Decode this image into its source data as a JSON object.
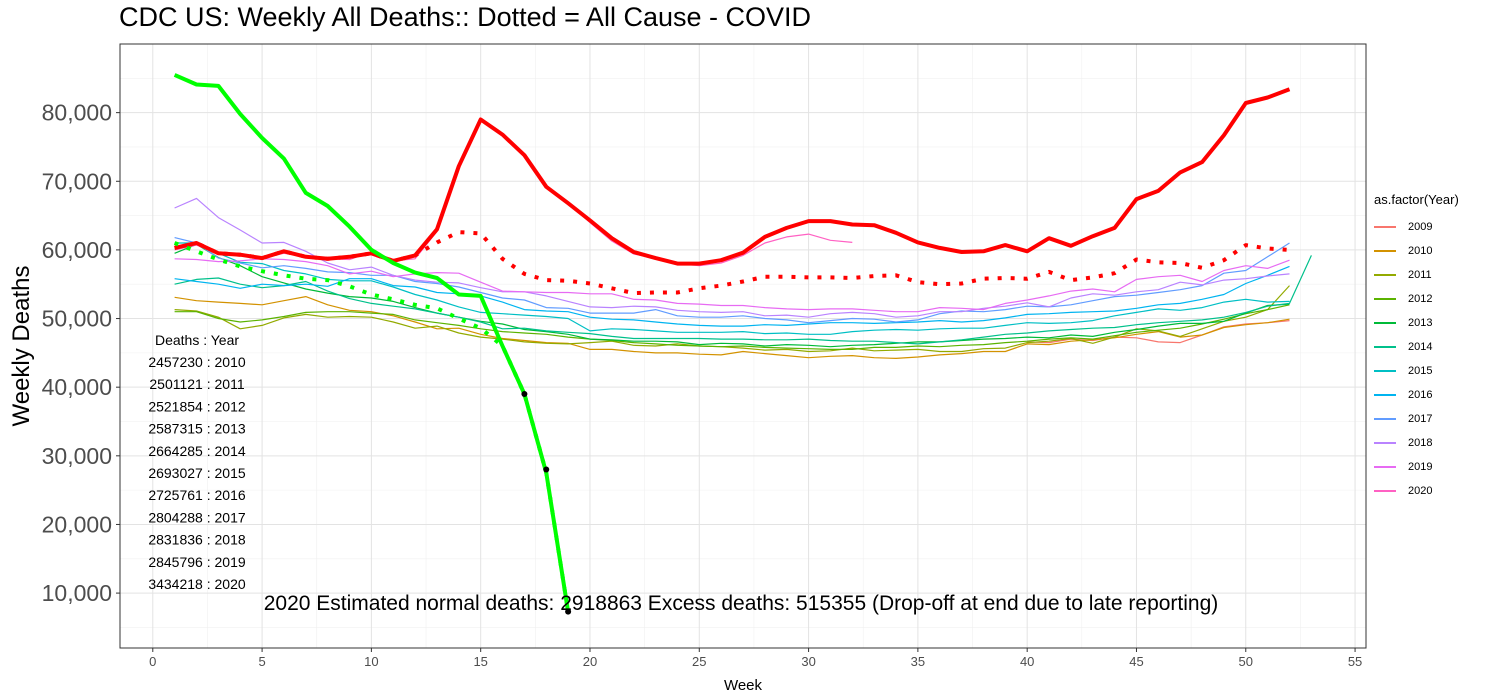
{
  "title": "CDC US: Weekly All Deaths:: Dotted = All Cause - COVID",
  "chart_data": {
    "type": "line",
    "xlabel": "Week",
    "ylabel": "Weekly Deaths",
    "xlim": [
      -1.5,
      55.5
    ],
    "ylim": [
      2000,
      90000
    ],
    "x_ticks": [
      0,
      5,
      10,
      15,
      20,
      25,
      30,
      35,
      40,
      45,
      50,
      55
    ],
    "y_ticks": [
      10000,
      20000,
      30000,
      40000,
      50000,
      60000,
      70000,
      80000
    ],
    "y_tick_labels": [
      "10,000",
      "20,000",
      "30,000",
      "40,000",
      "50,000",
      "60,000",
      "70,000",
      "80,000"
    ],
    "grid": true,
    "legend_title": "as.factor(Year)",
    "legend_position": "right",
    "series": [
      {
        "name": "2009",
        "color": "#F8766D",
        "x_start": 40,
        "values": [
          46600,
          46500,
          47000,
          46800,
          47300,
          47200,
          46600,
          46500,
          47600,
          48800,
          49200,
          49400,
          49700
        ]
      },
      {
        "name": "2010",
        "color": "#D39200",
        "x_start": 1,
        "values": [
          53100,
          52600,
          52400,
          52200,
          52000,
          52600,
          53200,
          52000,
          51200,
          51000,
          50400,
          49500,
          48500,
          48600,
          47700,
          47100,
          46800,
          46500,
          46400,
          45500,
          45500,
          45200,
          45000,
          45000,
          44800,
          44700,
          45200,
          44900,
          44600,
          44300,
          44500,
          44600,
          44300,
          44200,
          44400,
          44700,
          44900,
          45200,
          45200,
          46300,
          46200,
          46700,
          46900,
          47200,
          47700,
          48100,
          47300,
          47600,
          48700,
          49100,
          49400,
          49900
        ]
      },
      {
        "name": "2011",
        "color": "#93AA00",
        "x_start": 1,
        "values": [
          51300,
          51100,
          50200,
          48500,
          49000,
          50100,
          50600,
          50200,
          50300,
          50200,
          49500,
          48600,
          48900,
          47900,
          47300,
          47000,
          46600,
          46400,
          46300,
          46500,
          46700,
          46100,
          46000,
          46300,
          46000,
          45900,
          45700,
          45400,
          45500,
          45200,
          45300,
          45700,
          45300,
          45400,
          45500,
          45200,
          45200,
          45600,
          45700,
          46500,
          46700,
          47100,
          46400,
          47300,
          48500,
          48200,
          47400,
          48500,
          49600,
          50200,
          51300,
          54800
        ]
      },
      {
        "name": "2012",
        "color": "#5BB300",
        "x_start": 1,
        "values": [
          51000,
          51000,
          50000,
          49500,
          49800,
          50300,
          50900,
          51000,
          51000,
          50800,
          50600,
          49800,
          49400,
          49000,
          48500,
          48100,
          47900,
          47700,
          47300,
          47000,
          46800,
          46500,
          46300,
          46100,
          46000,
          45900,
          46000,
          45800,
          45700,
          45600,
          45500,
          45500,
          45800,
          45800,
          46000,
          45900,
          46100,
          46200,
          46500,
          46700,
          47000,
          47200,
          47000,
          47500,
          48000,
          48300,
          48600,
          49200,
          49900,
          50700,
          51300,
          52000
        ]
      },
      {
        "name": "2013",
        "color": "#00BA38",
        "x_start": 1,
        "values": [
          59500,
          60800,
          58900,
          57700,
          56100,
          55200,
          54300,
          53700,
          53200,
          53000,
          52500,
          51600,
          50800,
          50200,
          49600,
          49200,
          48400,
          48100,
          47700,
          47000,
          46900,
          46700,
          46700,
          46600,
          46200,
          46400,
          46300,
          46000,
          46200,
          46100,
          45900,
          46100,
          46200,
          46400,
          46600,
          46600,
          46800,
          47000,
          47100,
          47300,
          47200,
          47600,
          47400,
          48000,
          48400,
          48900,
          49300,
          49300,
          49600,
          50800,
          51900,
          52100
        ]
      },
      {
        "name": "2014",
        "color": "#00C08B",
        "x_start": 1,
        "values": [
          55000,
          55700,
          55900,
          55000,
          54500,
          54800,
          55400,
          54000,
          52900,
          52200,
          51800,
          51400,
          50800,
          50200,
          49500,
          48500,
          48600,
          48200,
          48000,
          47800,
          47400,
          47100,
          47100,
          47100,
          47100,
          47000,
          47000,
          46900,
          46900,
          47000,
          46800,
          46700,
          46700,
          46500,
          46300,
          46600,
          46900,
          47300,
          47700,
          47900,
          48200,
          48400,
          48600,
          48700,
          49100,
          49400,
          49600,
          49800,
          50200,
          50900,
          51800,
          52200,
          59200
        ]
      },
      {
        "name": "2015",
        "color": "#00BFC4",
        "x_start": 1,
        "values": [
          61000,
          61000,
          59500,
          58200,
          58000,
          57000,
          56500,
          55700,
          55500,
          55500,
          54600,
          53500,
          52700,
          51700,
          50900,
          50700,
          50500,
          50300,
          50000,
          48200,
          48500,
          48400,
          48200,
          48000,
          48000,
          48000,
          48100,
          47800,
          47900,
          47700,
          47700,
          48100,
          48300,
          48400,
          48300,
          48500,
          48600,
          48600,
          49000,
          49400,
          49300,
          49400,
          49700,
          50400,
          50900,
          51400,
          51200,
          51600,
          52400,
          52800,
          52400,
          52500
        ]
      },
      {
        "name": "2016",
        "color": "#00B4F0",
        "x_start": 1,
        "values": [
          55800,
          55400,
          55000,
          54400,
          55000,
          54800,
          55000,
          54700,
          55800,
          55800,
          54800,
          54600,
          53800,
          53600,
          53300,
          52400,
          51300,
          51100,
          51000,
          50200,
          49900,
          49800,
          49500,
          49200,
          49000,
          48900,
          48900,
          49100,
          49000,
          49200,
          49400,
          49400,
          49300,
          49400,
          49500,
          49700,
          49500,
          49700,
          50100,
          50600,
          50700,
          50900,
          51000,
          51100,
          51500,
          52000,
          52200,
          52800,
          53500,
          55100,
          56300,
          57600
        ]
      },
      {
        "name": "2017",
        "color": "#619CFF",
        "x_start": 1,
        "values": [
          61800,
          61000,
          58800,
          58100,
          57400,
          57700,
          57300,
          56800,
          56700,
          56300,
          56300,
          55400,
          55100,
          54600,
          53800,
          53000,
          52700,
          51600,
          51500,
          50800,
          50800,
          50800,
          51300,
          50400,
          50200,
          50200,
          50400,
          50000,
          49800,
          49400,
          49700,
          50000,
          49900,
          49500,
          49800,
          50700,
          51100,
          51000,
          51300,
          51800,
          51700,
          52000,
          52600,
          53200,
          53400,
          53800,
          54200,
          54800,
          56600,
          57000,
          59000,
          61000
        ]
      },
      {
        "name": "2018",
        "color": "#B983FF",
        "x_start": 1,
        "values": [
          66100,
          67500,
          64700,
          62900,
          61000,
          61100,
          59800,
          58100,
          57100,
          57500,
          56300,
          55600,
          55300,
          55200,
          54500,
          53900,
          53900,
          53300,
          52500,
          51700,
          51600,
          51800,
          51700,
          51200,
          51000,
          50900,
          51000,
          50400,
          50500,
          50200,
          50700,
          50900,
          50700,
          50200,
          50400,
          51000,
          51000,
          51500,
          51800,
          52300,
          51700,
          53000,
          53600,
          53400,
          53900,
          54200,
          55300,
          54900,
          55600,
          55800,
          56200,
          56500
        ]
      },
      {
        "name": "2019",
        "color": "#E76BF3",
        "x_start": 1,
        "values": [
          58700,
          58600,
          58300,
          58400,
          58700,
          58600,
          58300,
          57700,
          56500,
          56900,
          56100,
          56500,
          56700,
          56600,
          55300,
          54000,
          53900,
          53800,
          53800,
          53600,
          53600,
          52800,
          52700,
          52200,
          52100,
          51900,
          51900,
          51600,
          51400,
          51300,
          51400,
          51400,
          51200,
          51000,
          51000,
          51600,
          51500,
          51300,
          52200,
          52700,
          53300,
          54000,
          54300,
          53900,
          55700,
          56100,
          56300,
          55400,
          57000,
          57700,
          57300,
          58500
        ]
      },
      {
        "name": "2020",
        "color": "#FF61C3",
        "x_start": 1,
        "values": [
          60000,
          60700,
          59400,
          59300,
          58800,
          59500,
          59000,
          58700,
          58600,
          59700,
          58400,
          58700,
          62700,
          72200,
          79000,
          76800,
          73800,
          69000,
          66800,
          64000,
          61300,
          59400,
          58800,
          58000,
          57700,
          58100,
          59200,
          61000,
          61900,
          62300,
          61400,
          61100
        ]
      },
      {
        "name": "2020 all deaths (red)",
        "color": "#FF0000",
        "width": 4,
        "x_start": 1,
        "values": [
          60300,
          61000,
          59500,
          59300,
          58800,
          59800,
          59000,
          58700,
          59000,
          59500,
          58400,
          59200,
          63000,
          72200,
          79000,
          76800,
          73800,
          69200,
          66800,
          64300,
          61700,
          59700,
          58800,
          58000,
          58000,
          58500,
          59600,
          61900,
          63200,
          64200,
          64200,
          63700,
          63600,
          62500,
          61100,
          60300,
          59700,
          59800,
          60700,
          59800,
          61700,
          60600,
          62000,
          63200,
          67400,
          68600,
          71300,
          72800,
          76700,
          81400,
          82200,
          83400
        ]
      },
      {
        "name": "2020 all cause - COVID (red dotted)",
        "color": "#FF0000",
        "width": 4,
        "dotted": true,
        "x_start": 1,
        "values": [
          60300,
          61000,
          59500,
          59300,
          58800,
          59800,
          59000,
          58700,
          59000,
          59500,
          58400,
          59200,
          61100,
          62600,
          62400,
          58700,
          56500,
          55600,
          55500,
          55100,
          54400,
          53700,
          53800,
          53800,
          54400,
          54800,
          55400,
          56100,
          56100,
          56000,
          56000,
          55900,
          56200,
          56300,
          55300,
          55000,
          55100,
          55800,
          55900,
          55800,
          56800,
          55600,
          56000,
          56600,
          58600,
          58200,
          58100,
          57400,
          58500,
          60700,
          60200,
          60000
        ]
      },
      {
        "name": "2021 all deaths (green)",
        "color": "#00FF00",
        "width": 4,
        "x_start": 1,
        "values": [
          85500,
          84100,
          83900,
          79800,
          76300,
          73300,
          68300,
          66400,
          63400,
          60000,
          58100,
          56700,
          55900,
          53500,
          53300,
          46000,
          39000,
          27500,
          7300
        ]
      },
      {
        "name": "2021 all cause - COVID (green dotted)",
        "color": "#00FF00",
        "width": 4,
        "dotted": true,
        "x_start": 1,
        "values": [
          61000,
          59800,
          58600,
          57600,
          56900,
          56300,
          55800,
          55600,
          54700,
          53500,
          52800,
          52000,
          51500,
          50000,
          48600,
          46000,
          39000,
          27500,
          7300
        ]
      }
    ],
    "legend_entries": [
      "2009",
      "2010",
      "2011",
      "2012",
      "2013",
      "2014",
      "2015",
      "2016",
      "2017",
      "2018",
      "2019",
      "2020"
    ],
    "legend_colors": [
      "#F8766D",
      "#D39200",
      "#93AA00",
      "#5BB300",
      "#00BA38",
      "#00C08B",
      "#00BFC4",
      "#00B4F0",
      "#619CFF",
      "#B983FF",
      "#E76BF3",
      "#FF61C3"
    ],
    "black_points": [
      {
        "x": 17,
        "y": 39000
      },
      {
        "x": 18,
        "y": 28000
      },
      {
        "x": 19,
        "y": 7300
      }
    ],
    "annotations": {
      "deaths_header": "Deaths : Year",
      "deaths_lines": [
        "2457230 : 2010",
        "2501121 : 2011",
        "2521854 : 2012",
        "2587315 : 2013",
        "2664285 : 2014",
        "2693027 : 2015",
        "2725761 : 2016",
        "2804288 : 2017",
        "2831836 : 2018",
        "2845796 : 2019",
        "3434218 : 2020"
      ],
      "bottom_note": "2020 Estimated normal deaths: 2918863  Excess deaths: 515355  (Drop-off at end due to late reporting)"
    }
  }
}
